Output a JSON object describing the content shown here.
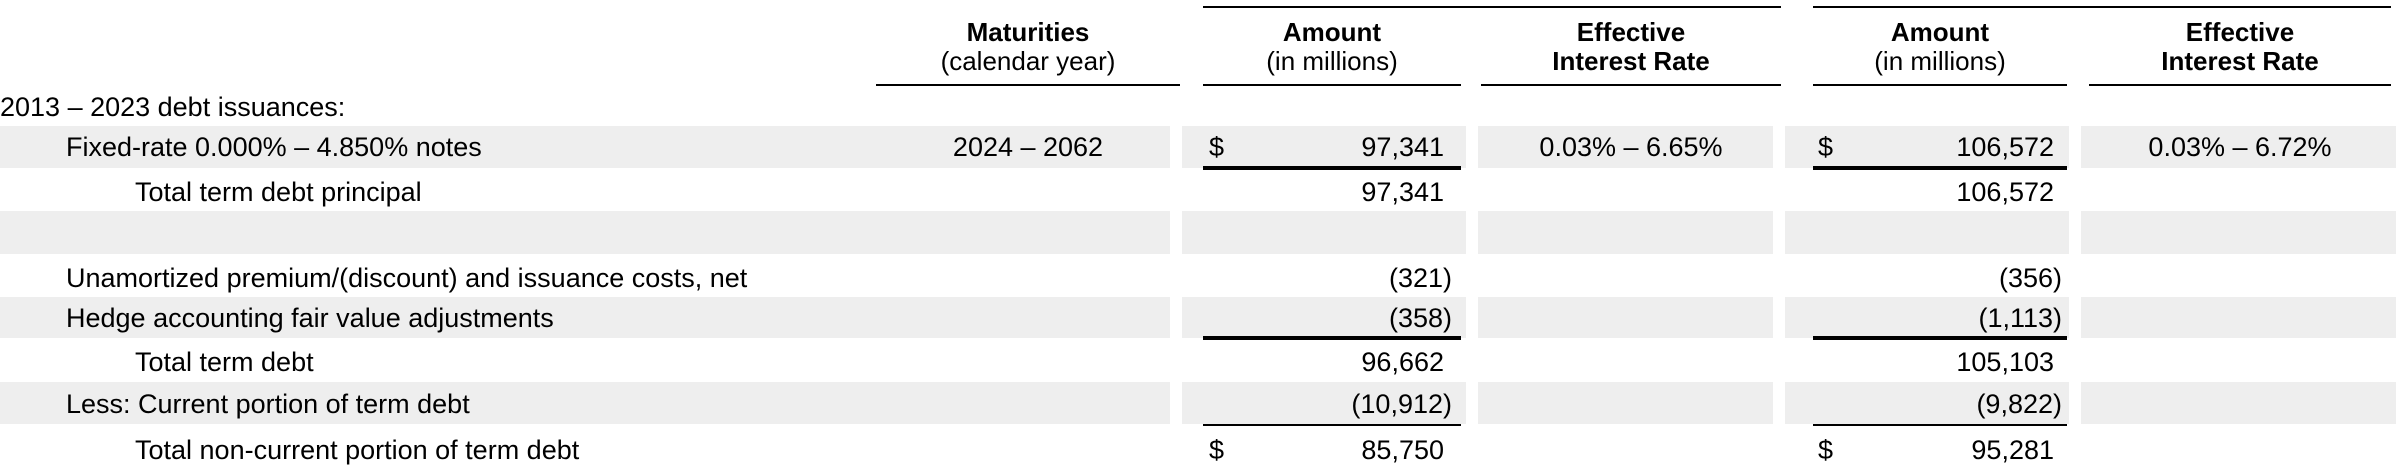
{
  "headers": {
    "maturities": {
      "title": "Maturities",
      "sub": "(calendar year)"
    },
    "amount_1": {
      "title": "Amount",
      "sub": "(in millions)"
    },
    "rate_1": {
      "title": "Effective",
      "sub": "Interest Rate"
    },
    "amount_2": {
      "title": "Amount",
      "sub": "(in millions)"
    },
    "rate_2": {
      "title": "Effective",
      "sub": "Interest Rate"
    }
  },
  "section_label": "2013 – 2023 debt issuances:",
  "rows": {
    "fixed_rate": {
      "label": "Fixed-rate 0.000% – 4.850% notes",
      "maturities": "2024 – 2062",
      "cur1": "$",
      "amount1": "97,341",
      "rate1": "0.03% – 6.65%",
      "cur2": "$",
      "amount2": "106,572",
      "rate2": "0.03% – 6.72%"
    },
    "total_principal": {
      "label": "Total term debt principal",
      "amount1": "97,341",
      "amount2": "106,572"
    },
    "unamortized": {
      "label": "Unamortized premium/(discount) and issuance costs, net",
      "amount1": "(321)",
      "amount2": "(356)"
    },
    "hedge": {
      "label": "Hedge accounting fair value adjustments",
      "amount1": "(358)",
      "amount2": "(1,113)"
    },
    "total_term_debt": {
      "label": "Total term debt",
      "amount1": "96,662",
      "amount2": "105,103"
    },
    "current_portion": {
      "label": "Less: Current portion of term debt",
      "amount1": "(10,912)",
      "amount2": "(9,822)"
    },
    "non_current": {
      "label": "Total non-current portion of term debt",
      "cur1": "$",
      "amount1": "85,750",
      "cur2": "$",
      "amount2": "95,281"
    }
  },
  "colors": {
    "stripe": "#eeeeee",
    "text": "#000000",
    "rule": "#000000"
  }
}
